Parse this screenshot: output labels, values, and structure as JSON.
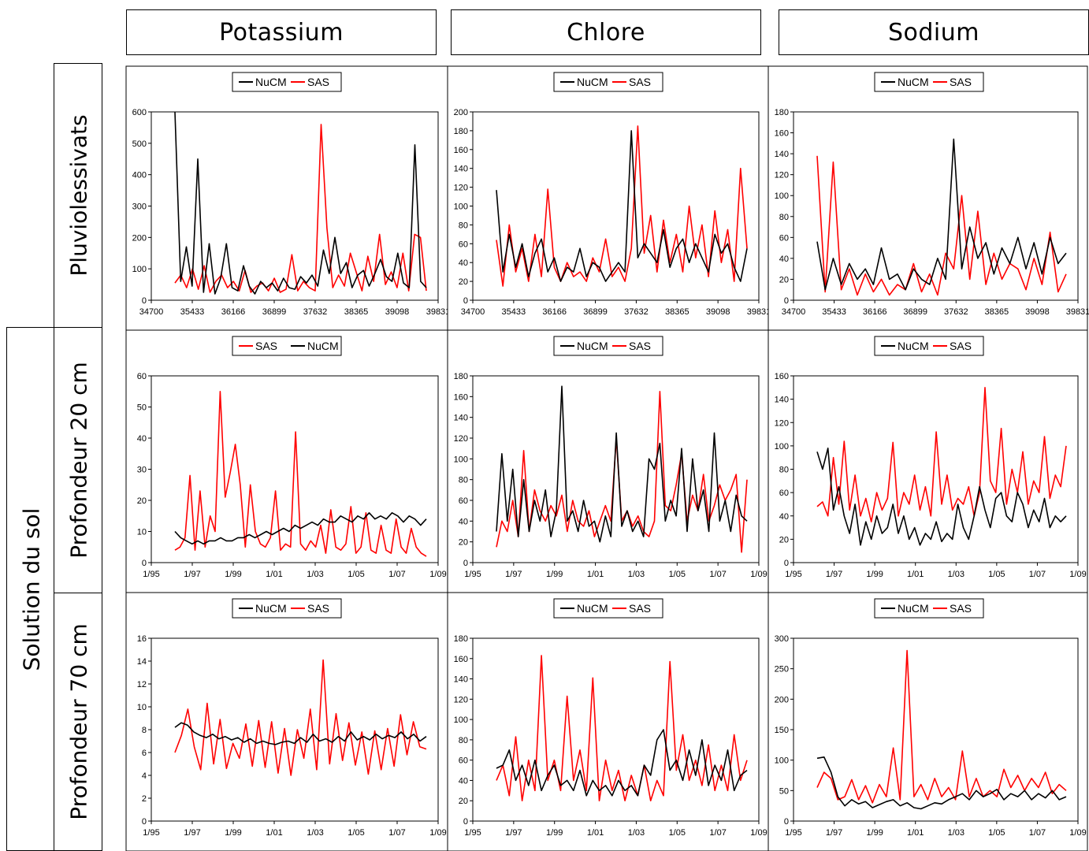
{
  "column_headers": [
    "Potassium",
    "Chlore",
    "Sodium"
  ],
  "group_label": "Solution du sol",
  "row_labels": [
    "Pluviolessivats",
    "Profondeur 20 cm",
    "Profondeur 70 cm"
  ],
  "colors": {
    "NuCM": "#000000",
    "SAS": "#ff0000"
  },
  "chart_data": [
    {
      "id": "k-pluvio",
      "type": "line",
      "row": 0,
      "col": 0,
      "legend": [
        "NuCM",
        "SAS"
      ],
      "xticks": [
        "34700",
        "35433",
        "36166",
        "36899",
        "37632",
        "38365",
        "39098",
        "39831"
      ],
      "yticks": [
        "0",
        "100",
        "200",
        "300",
        "400",
        "500",
        "600"
      ],
      "ylim": [
        0,
        600
      ],
      "series": [
        {
          "name": "NuCM",
          "values": [
            600,
            60,
            170,
            45,
            450,
            25,
            180,
            20,
            70,
            180,
            40,
            30,
            110,
            45,
            20,
            60,
            40,
            55,
            30,
            70,
            40,
            35,
            75,
            55,
            80,
            45,
            160,
            85,
            200,
            85,
            120,
            40,
            80,
            95,
            45,
            85,
            130,
            75,
            60,
            150,
            55,
            40,
            495,
            60,
            40
          ]
        },
        {
          "name": "SAS",
          "values": [
            55,
            80,
            40,
            100,
            35,
            110,
            25,
            60,
            80,
            40,
            60,
            30,
            95,
            25,
            45,
            55,
            30,
            70,
            25,
            35,
            145,
            30,
            60,
            40,
            30,
            560,
            230,
            40,
            80,
            45,
            150,
            90,
            30,
            140,
            60,
            210,
            50,
            90,
            40,
            150,
            30,
            210,
            200,
            30
          ]
        }
      ]
    },
    {
      "id": "cl-pluvio",
      "type": "line",
      "row": 0,
      "col": 1,
      "legend": [
        "NuCM",
        "SAS"
      ],
      "xticks": [
        "34700",
        "35433",
        "36166",
        "36899",
        "37632",
        "38365",
        "39098",
        "39831"
      ],
      "yticks": [
        "0",
        "20",
        "40",
        "60",
        "80",
        "100",
        "120",
        "140",
        "160",
        "180",
        "200"
      ],
      "ylim": [
        0,
        200
      ],
      "series": [
        {
          "name": "NuCM",
          "values": [
            117,
            30,
            70,
            35,
            60,
            25,
            50,
            65,
            30,
            45,
            20,
            35,
            30,
            55,
            25,
            40,
            35,
            20,
            30,
            40,
            30,
            180,
            45,
            60,
            50,
            40,
            75,
            35,
            55,
            65,
            40,
            60,
            45,
            30,
            70,
            50,
            60,
            35,
            20,
            55
          ]
        },
        {
          "name": "SAS",
          "values": [
            64,
            15,
            80,
            30,
            55,
            20,
            70,
            25,
            118,
            35,
            20,
            40,
            25,
            30,
            20,
            45,
            30,
            65,
            25,
            35,
            20,
            55,
            185,
            50,
            90,
            30,
            85,
            40,
            70,
            30,
            100,
            45,
            80,
            25,
            95,
            40,
            75,
            20,
            140,
            55
          ]
        }
      ]
    },
    {
      "id": "na-pluvio",
      "type": "line",
      "row": 0,
      "col": 2,
      "legend": [
        "NuCM",
        "SAS"
      ],
      "xticks": [
        "34700",
        "35433",
        "36166",
        "36899",
        "37632",
        "38365",
        "39098",
        "39831"
      ],
      "yticks": [
        "0",
        "20",
        "40",
        "60",
        "80",
        "100",
        "120",
        "140",
        "160",
        "180"
      ],
      "ylim": [
        0,
        180
      ],
      "series": [
        {
          "name": "NuCM",
          "values": [
            56,
            10,
            40,
            15,
            35,
            20,
            30,
            15,
            50,
            20,
            25,
            10,
            30,
            20,
            15,
            40,
            20,
            154,
            30,
            70,
            40,
            55,
            25,
            50,
            35,
            60,
            30,
            55,
            25,
            60,
            35,
            45
          ]
        },
        {
          "name": "SAS",
          "values": [
            138,
            8,
            132,
            10,
            30,
            5,
            25,
            8,
            20,
            5,
            15,
            10,
            35,
            8,
            25,
            5,
            45,
            30,
            100,
            20,
            85,
            15,
            45,
            20,
            35,
            30,
            10,
            40,
            15,
            65,
            8,
            25
          ]
        }
      ]
    },
    {
      "id": "k-20",
      "type": "line",
      "row": 1,
      "col": 0,
      "legend": [
        "SAS",
        "NuCM"
      ],
      "xticks": [
        "1/95",
        "1/97",
        "1/99",
        "1/01",
        "1/03",
        "1/05",
        "1/07",
        "1/09"
      ],
      "yticks": [
        "0",
        "10",
        "20",
        "30",
        "40",
        "50",
        "60"
      ],
      "ylim": [
        0,
        60
      ],
      "series": [
        {
          "name": "SAS",
          "values": [
            4,
            5,
            8,
            28,
            4,
            23,
            5,
            15,
            10,
            55,
            21,
            29,
            38,
            25,
            5,
            25,
            10,
            6,
            5,
            8,
            23,
            4,
            6,
            5,
            42,
            6,
            4,
            7,
            5,
            12,
            3,
            17,
            5,
            4,
            6,
            18,
            3,
            5,
            16,
            4,
            3,
            12,
            4,
            3,
            14,
            5,
            3,
            11,
            5,
            3,
            2
          ]
        },
        {
          "name": "NuCM",
          "values": [
            10,
            8,
            7,
            6,
            7,
            6,
            7,
            7,
            8,
            7,
            7,
            8,
            8,
            9,
            8,
            9,
            10,
            9,
            10,
            11,
            10,
            12,
            11,
            12,
            13,
            12,
            14,
            13,
            13,
            15,
            14,
            13,
            15,
            14,
            16,
            14,
            15,
            14,
            16,
            15,
            13,
            15,
            14,
            12,
            14
          ]
        }
      ]
    },
    {
      "id": "cl-20",
      "type": "line",
      "row": 1,
      "col": 1,
      "legend": [
        "NuCM",
        "SAS"
      ],
      "xticks": [
        "1/95",
        "1/97",
        "1/99",
        "1/01",
        "1/03",
        "1/05",
        "1/07",
        "1/09"
      ],
      "yticks": [
        "0",
        "20",
        "40",
        "60",
        "80",
        "100",
        "120",
        "140",
        "160",
        "180"
      ],
      "ylim": [
        0,
        180
      ],
      "series": [
        {
          "name": "NuCM",
          "values": [
            30,
            105,
            40,
            90,
            25,
            80,
            30,
            60,
            40,
            70,
            25,
            50,
            170,
            40,
            50,
            30,
            60,
            35,
            40,
            20,
            45,
            25,
            125,
            35,
            50,
            30,
            40,
            25,
            100,
            90,
            115,
            40,
            60,
            45,
            110,
            30,
            100,
            50,
            70,
            30,
            125,
            40,
            60,
            30,
            65,
            45,
            40
          ]
        },
        {
          "name": "SAS",
          "values": [
            15,
            40,
            30,
            60,
            25,
            108,
            30,
            70,
            50,
            40,
            55,
            45,
            65,
            30,
            60,
            40,
            35,
            50,
            25,
            40,
            55,
            40,
            120,
            40,
            50,
            35,
            45,
            30,
            25,
            40,
            165,
            55,
            50,
            75,
            105,
            40,
            65,
            50,
            85,
            40,
            55,
            75,
            60,
            70,
            85,
            10,
            80
          ]
        }
      ]
    },
    {
      "id": "na-20",
      "type": "line",
      "row": 1,
      "col": 2,
      "legend": [
        "NuCM",
        "SAS"
      ],
      "xticks": [
        "1/95",
        "1/97",
        "1/99",
        "1/01",
        "1/03",
        "1/05",
        "1/07",
        "1/09"
      ],
      "yticks": [
        "0",
        "20",
        "40",
        "60",
        "80",
        "100",
        "120",
        "140",
        "160"
      ],
      "ylim": [
        0,
        160
      ],
      "series": [
        {
          "name": "NuCM",
          "values": [
            95,
            80,
            98,
            45,
            65,
            40,
            25,
            50,
            15,
            35,
            20,
            40,
            25,
            30,
            50,
            25,
            40,
            20,
            30,
            15,
            25,
            20,
            35,
            18,
            25,
            20,
            50,
            30,
            20,
            40,
            65,
            45,
            30,
            55,
            60,
            40,
            35,
            60,
            50,
            30,
            45,
            35,
            55,
            30,
            40,
            35,
            40
          ]
        },
        {
          "name": "SAS",
          "values": [
            48,
            52,
            40,
            90,
            50,
            104,
            45,
            75,
            40,
            55,
            35,
            60,
            45,
            55,
            103,
            40,
            60,
            50,
            75,
            45,
            65,
            40,
            112,
            50,
            75,
            45,
            55,
            50,
            65,
            40,
            60,
            150,
            70,
            60,
            115,
            50,
            80,
            60,
            95,
            50,
            70,
            60,
            108,
            55,
            75,
            65,
            100
          ]
        }
      ]
    },
    {
      "id": "k-70",
      "type": "line",
      "row": 2,
      "col": 0,
      "legend": [
        "NuCM",
        "SAS"
      ],
      "xticks": [
        "1/95",
        "1/97",
        "1/99",
        "1/01",
        "1/03",
        "1/05",
        "1/07",
        "1/09"
      ],
      "yticks": [
        "0",
        "2",
        "4",
        "6",
        "8",
        "10",
        "12",
        "14",
        "16"
      ],
      "ylim": [
        0,
        16
      ],
      "series": [
        {
          "name": "NuCM",
          "values": [
            8.2,
            8.6,
            8.4,
            7.8,
            7.5,
            7.3,
            7.6,
            7.2,
            7.4,
            7.1,
            7.3,
            6.9,
            7.2,
            6.8,
            7.0,
            6.8,
            6.7,
            6.9,
            7.0,
            6.8,
            7.3,
            6.9,
            7.6,
            7.0,
            7.2,
            6.9,
            7.4,
            7.0,
            7.8,
            7.1,
            7.4,
            7.1,
            7.6,
            7.2,
            7.5,
            7.3,
            7.8,
            7.2,
            7.6,
            7.0,
            7.4
          ]
        },
        {
          "name": "SAS",
          "values": [
            6.0,
            7.5,
            9.8,
            6.5,
            4.5,
            10.3,
            5.0,
            8.9,
            4.6,
            6.8,
            5.5,
            8.5,
            4.8,
            8.8,
            4.7,
            8.7,
            4.2,
            8.1,
            4.0,
            8.0,
            5.5,
            9.8,
            4.5,
            14.1,
            5.0,
            9.4,
            5.3,
            8.6,
            4.9,
            7.8,
            4.1,
            7.9,
            4.5,
            8.1,
            4.8,
            9.3,
            5.8,
            8.7,
            6.5,
            6.3
          ]
        }
      ]
    },
    {
      "id": "cl-70",
      "type": "line",
      "row": 2,
      "col": 1,
      "legend": [
        "NuCM",
        "SAS"
      ],
      "xticks": [
        "1/95",
        "1/97",
        "1/99",
        "1/01",
        "1/03",
        "1/05",
        "1/07",
        "1/09"
      ],
      "yticks": [
        "0",
        "20",
        "40",
        "60",
        "80",
        "100",
        "120",
        "140",
        "160",
        "180"
      ],
      "ylim": [
        0,
        180
      ],
      "series": [
        {
          "name": "NuCM",
          "values": [
            52,
            55,
            70,
            40,
            55,
            35,
            60,
            30,
            45,
            55,
            35,
            40,
            30,
            50,
            25,
            40,
            30,
            35,
            25,
            40,
            30,
            35,
            25,
            55,
            45,
            80,
            90,
            50,
            60,
            40,
            70,
            45,
            80,
            35,
            55,
            40,
            70,
            30,
            45,
            50
          ]
        },
        {
          "name": "SAS",
          "values": [
            40,
            55,
            25,
            83,
            20,
            60,
            30,
            163,
            40,
            60,
            30,
            123,
            40,
            70,
            30,
            141,
            20,
            60,
            30,
            50,
            20,
            45,
            25,
            55,
            20,
            40,
            25,
            157,
            50,
            85,
            40,
            60,
            35,
            75,
            30,
            55,
            30,
            85,
            40,
            60
          ]
        }
      ]
    },
    {
      "id": "na-70",
      "type": "line",
      "row": 2,
      "col": 2,
      "legend": [
        "NuCM",
        "SAS"
      ],
      "xticks": [
        "1/95",
        "1/97",
        "1/99",
        "1/01",
        "1/03",
        "1/05",
        "1/07",
        "1/09"
      ],
      "yticks": [
        "0",
        "50",
        "100",
        "150",
        "200",
        "250",
        "300"
      ],
      "ylim": [
        0,
        300
      ],
      "series": [
        {
          "name": "NuCM",
          "values": [
            103,
            105,
            80,
            40,
            25,
            35,
            28,
            32,
            22,
            27,
            32,
            35,
            25,
            30,
            22,
            20,
            25,
            30,
            28,
            35,
            40,
            45,
            35,
            50,
            40,
            45,
            52,
            35,
            45,
            40,
            50,
            35,
            45,
            38,
            50,
            35,
            40
          ]
        },
        {
          "name": "SAS",
          "values": [
            55,
            80,
            70,
            35,
            40,
            68,
            35,
            58,
            30,
            60,
            40,
            120,
            35,
            280,
            40,
            60,
            35,
            70,
            40,
            55,
            35,
            115,
            40,
            70,
            40,
            50,
            40,
            85,
            55,
            75,
            50,
            70,
            55,
            80,
            45,
            60,
            50
          ]
        }
      ]
    }
  ]
}
